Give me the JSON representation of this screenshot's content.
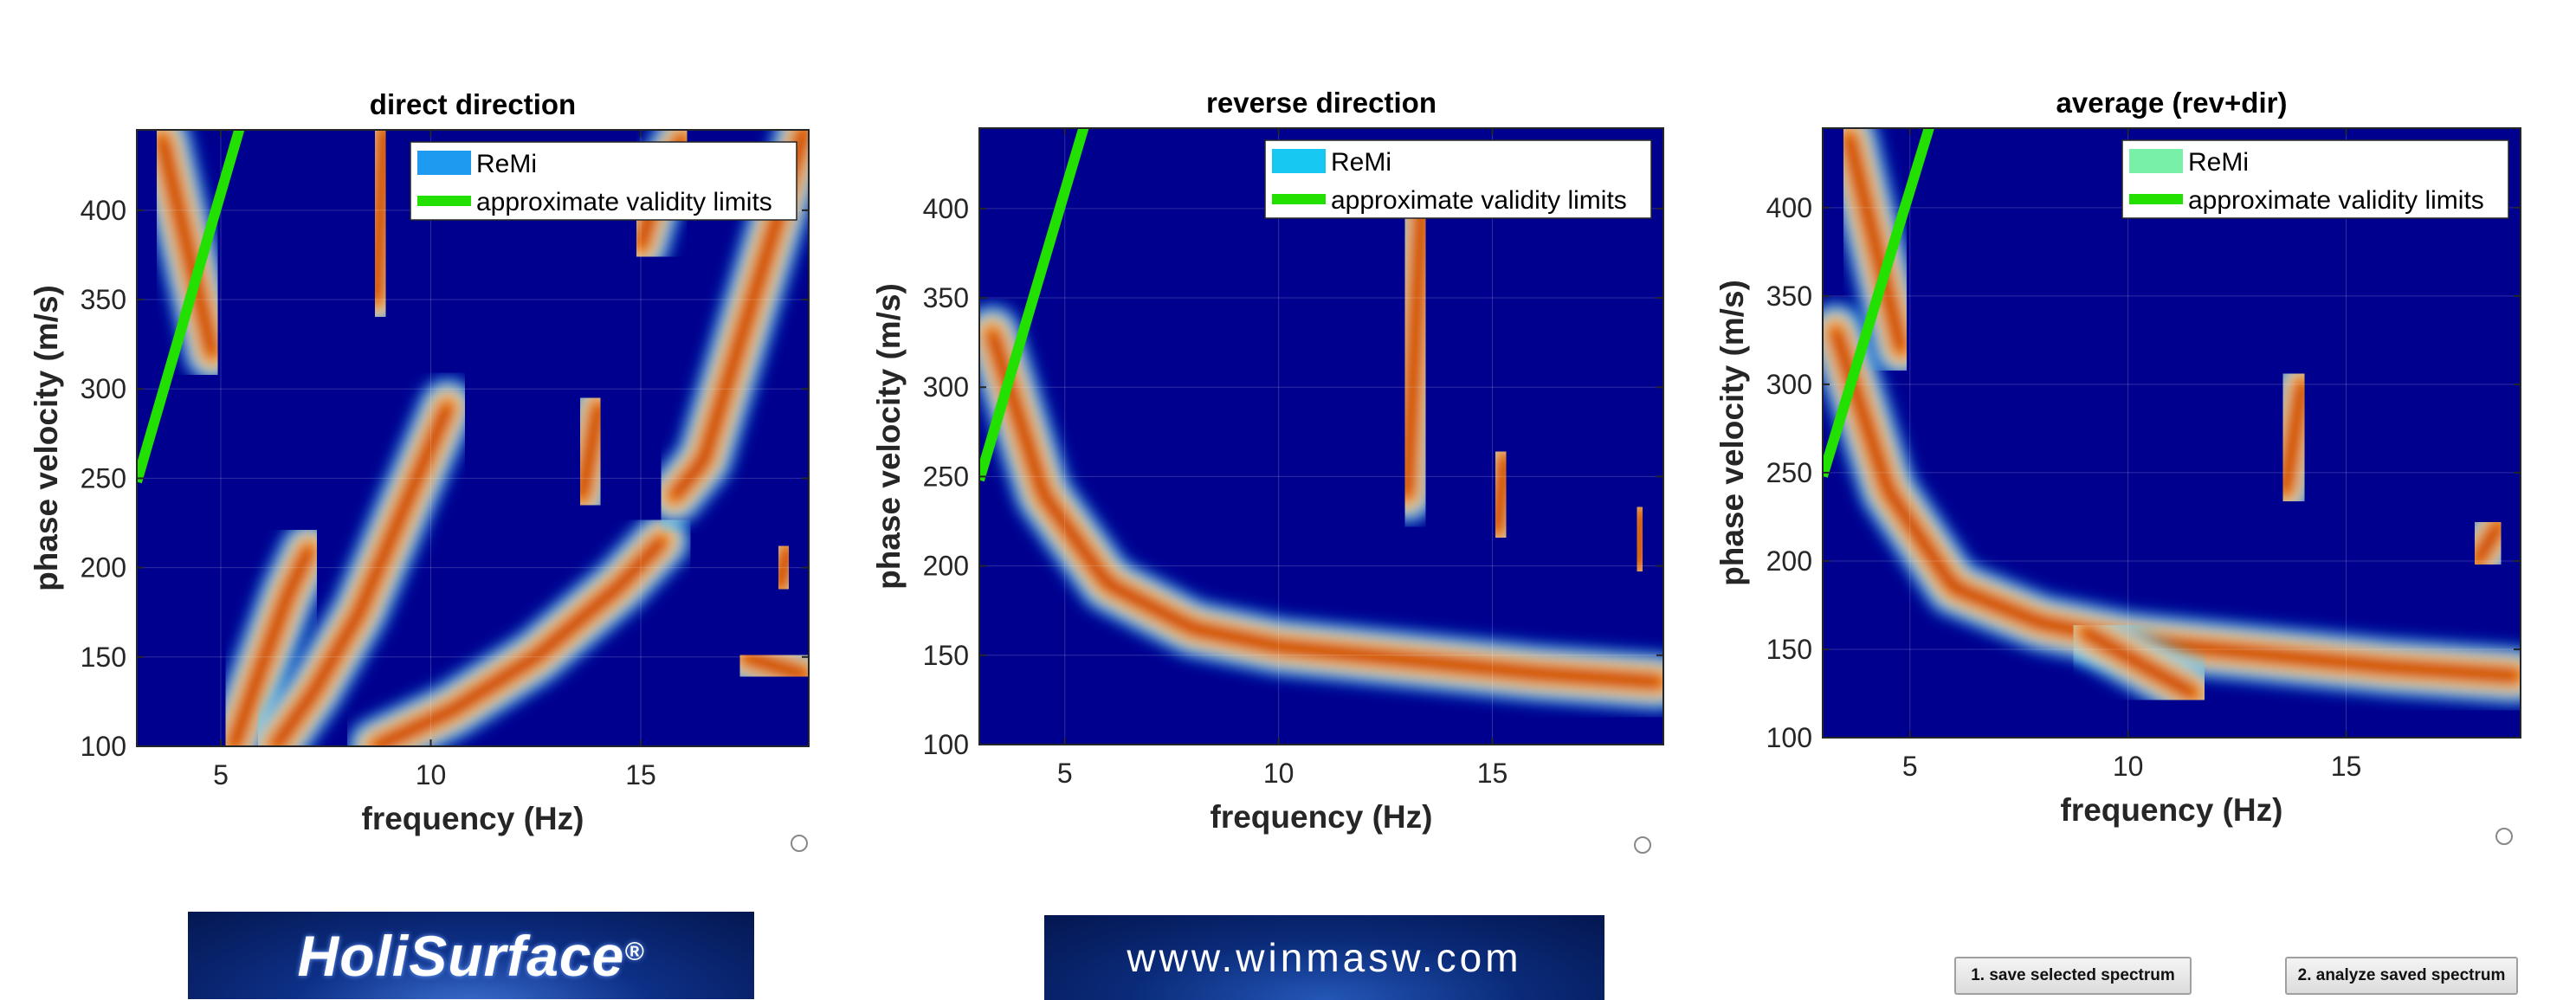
{
  "chart_data": [
    {
      "type": "heatmap",
      "title": "direct direction",
      "xlabel": "frequency (Hz)",
      "ylabel": "phase velocity (m/s)",
      "xlim": [
        3,
        19
      ],
      "ylim": [
        100,
        445
      ],
      "xticks": [
        "5",
        "10",
        "15"
      ],
      "yticks": [
        "100",
        "150",
        "200",
        "250",
        "300",
        "350",
        "400"
      ],
      "legend": {
        "placement": "top-right",
        "entries": [
          "ReMi",
          "approximate validity limits"
        ],
        "colors": [
          "#1e9bf0",
          "#22e000"
        ]
      },
      "validity_limit": {
        "x": [
          3,
          5.5
        ],
        "y": [
          248,
          450
        ]
      },
      "ridges": [
        {
          "x": [
            3.6,
            4.2,
            4.8
          ],
          "y": [
            440,
            380,
            320
          ]
        },
        {
          "x": [
            5.3,
            5.9,
            6.6,
            7.1
          ],
          "y": [
            100,
            140,
            185,
            210
          ]
        },
        {
          "x": [
            6.3,
            7.2,
            8.3,
            9.3,
            10.4
          ],
          "y": [
            100,
            130,
            175,
            230,
            290
          ]
        },
        {
          "x": [
            8.7,
            10.5,
            12.5,
            14.5,
            15.5
          ],
          "y": [
            100,
            120,
            150,
            190,
            215
          ]
        },
        {
          "x": [
            8.7,
            8.9
          ],
          "y": [
            350,
            445
          ]
        },
        {
          "x": [
            13.6,
            14.0
          ],
          "y": [
            240,
            290
          ]
        },
        {
          "x": [
            15.0,
            15.5,
            16.0
          ],
          "y": [
            380,
            420,
            440
          ]
        },
        {
          "x": [
            15.8,
            16.5,
            18.9
          ],
          "y": [
            240,
            260,
            445
          ]
        },
        {
          "x": [
            17.5,
            18.9
          ],
          "y": [
            150,
            140
          ]
        },
        {
          "x": [
            18.3,
            18.5
          ],
          "y": [
            190,
            210
          ]
        }
      ]
    },
    {
      "type": "heatmap",
      "title": "reverse direction",
      "xlabel": "frequency (Hz)",
      "ylabel": "phase velocity (m/s)",
      "xlim": [
        3,
        19
      ],
      "ylim": [
        100,
        445
      ],
      "xticks": [
        "5",
        "10",
        "15"
      ],
      "yticks": [
        "100",
        "150",
        "200",
        "250",
        "300",
        "350",
        "400"
      ],
      "legend": {
        "placement": "top-right",
        "entries": [
          "ReMi",
          "approximate validity limits"
        ],
        "colors": [
          "#16c8f2",
          "#22e000"
        ]
      },
      "validity_limit": {
        "x": [
          3,
          5.5
        ],
        "y": [
          248,
          450
        ]
      },
      "ridges": [
        {
          "x": [
            3.3,
            4.5,
            6.0,
            8.0,
            10.0,
            12.0,
            14.0,
            16.0,
            18.9
          ],
          "y": [
            330,
            240,
            190,
            165,
            155,
            150,
            145,
            140,
            135
          ]
        },
        {
          "x": [
            13.0,
            13.2,
            13.4
          ],
          "y": [
            240,
            330,
            420
          ]
        },
        {
          "x": [
            15.1,
            15.3
          ],
          "y": [
            220,
            260
          ]
        },
        {
          "x": [
            18.4,
            18.5
          ],
          "y": [
            200,
            230
          ]
        }
      ]
    },
    {
      "type": "heatmap",
      "title": "average (rev+dir)",
      "xlabel": "frequency (Hz)",
      "ylabel": "phase velocity (m/s)",
      "xlim": [
        3,
        19
      ],
      "ylim": [
        100,
        445
      ],
      "xticks": [
        "5",
        "10",
        "15"
      ],
      "yticks": [
        "100",
        "150",
        "200",
        "250",
        "300",
        "350",
        "400"
      ],
      "legend": {
        "placement": "top-right",
        "entries": [
          "ReMi",
          "approximate validity limits"
        ],
        "colors": [
          "#78f0a8",
          "#22e000"
        ]
      },
      "validity_limit": {
        "x": [
          3,
          5.5
        ],
        "y": [
          248,
          450
        ]
      },
      "ridges": [
        {
          "x": [
            3.3,
            4.5,
            6.0,
            8.0,
            10.0,
            12.0,
            14.0,
            16.0,
            18.9
          ],
          "y": [
            330,
            240,
            185,
            165,
            155,
            150,
            145,
            140,
            135
          ]
        },
        {
          "x": [
            3.6,
            4.2,
            4.8
          ],
          "y": [
            440,
            380,
            320
          ]
        },
        {
          "x": [
            9.0,
            10.4,
            11.5
          ],
          "y": [
            160,
            140,
            125
          ]
        },
        {
          "x": [
            13.6,
            14.0
          ],
          "y": [
            240,
            300
          ]
        },
        {
          "x": [
            18.0,
            18.5
          ],
          "y": [
            200,
            220
          ]
        }
      ]
    }
  ],
  "logos": {
    "holisurface": "HoliSurface",
    "holisurface_mark": "®",
    "winmasw": "www.winmasw.com"
  },
  "buttons": {
    "save": "1. save selected spectrum",
    "analyze": "2. analyze saved spectrum"
  }
}
